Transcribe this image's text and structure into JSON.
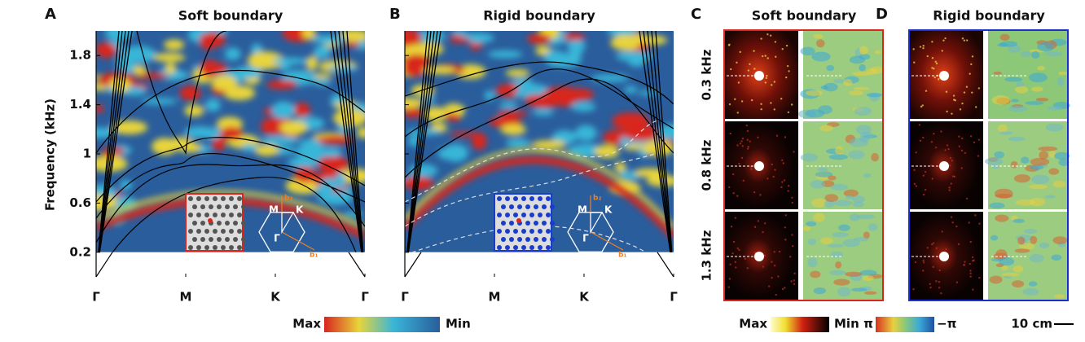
{
  "band_panels": [
    {
      "letter": "A",
      "title": "Soft boundary"
    },
    {
      "letter": "B",
      "title": "Rigid boundary"
    }
  ],
  "axis": {
    "label": "Frequency (kHz)",
    "ylim": [
      0,
      2
    ],
    "yticks": [
      0.2,
      0.6,
      1,
      1.4,
      1.8
    ],
    "xticks": [
      "Γ",
      "M",
      "K",
      "Γ"
    ]
  },
  "inset": {
    "M": "M",
    "K": "K",
    "G": "Γ",
    "b1": "b₁",
    "b2": "b₂"
  },
  "field_panels": [
    {
      "letter": "C",
      "title": "Soft boundary"
    },
    {
      "letter": "D",
      "title": "Rigid boundary"
    }
  ],
  "rows": [
    "0.3 kHz",
    "0.8 kHz",
    "1.3 kHz"
  ],
  "colorbars": {
    "band": {
      "max": "Max",
      "min": "Min"
    },
    "amplitude": {
      "max": "Max",
      "min": "Min"
    },
    "phase": {
      "max": "π",
      "min": "−π"
    },
    "scale": "10 cm"
  }
}
